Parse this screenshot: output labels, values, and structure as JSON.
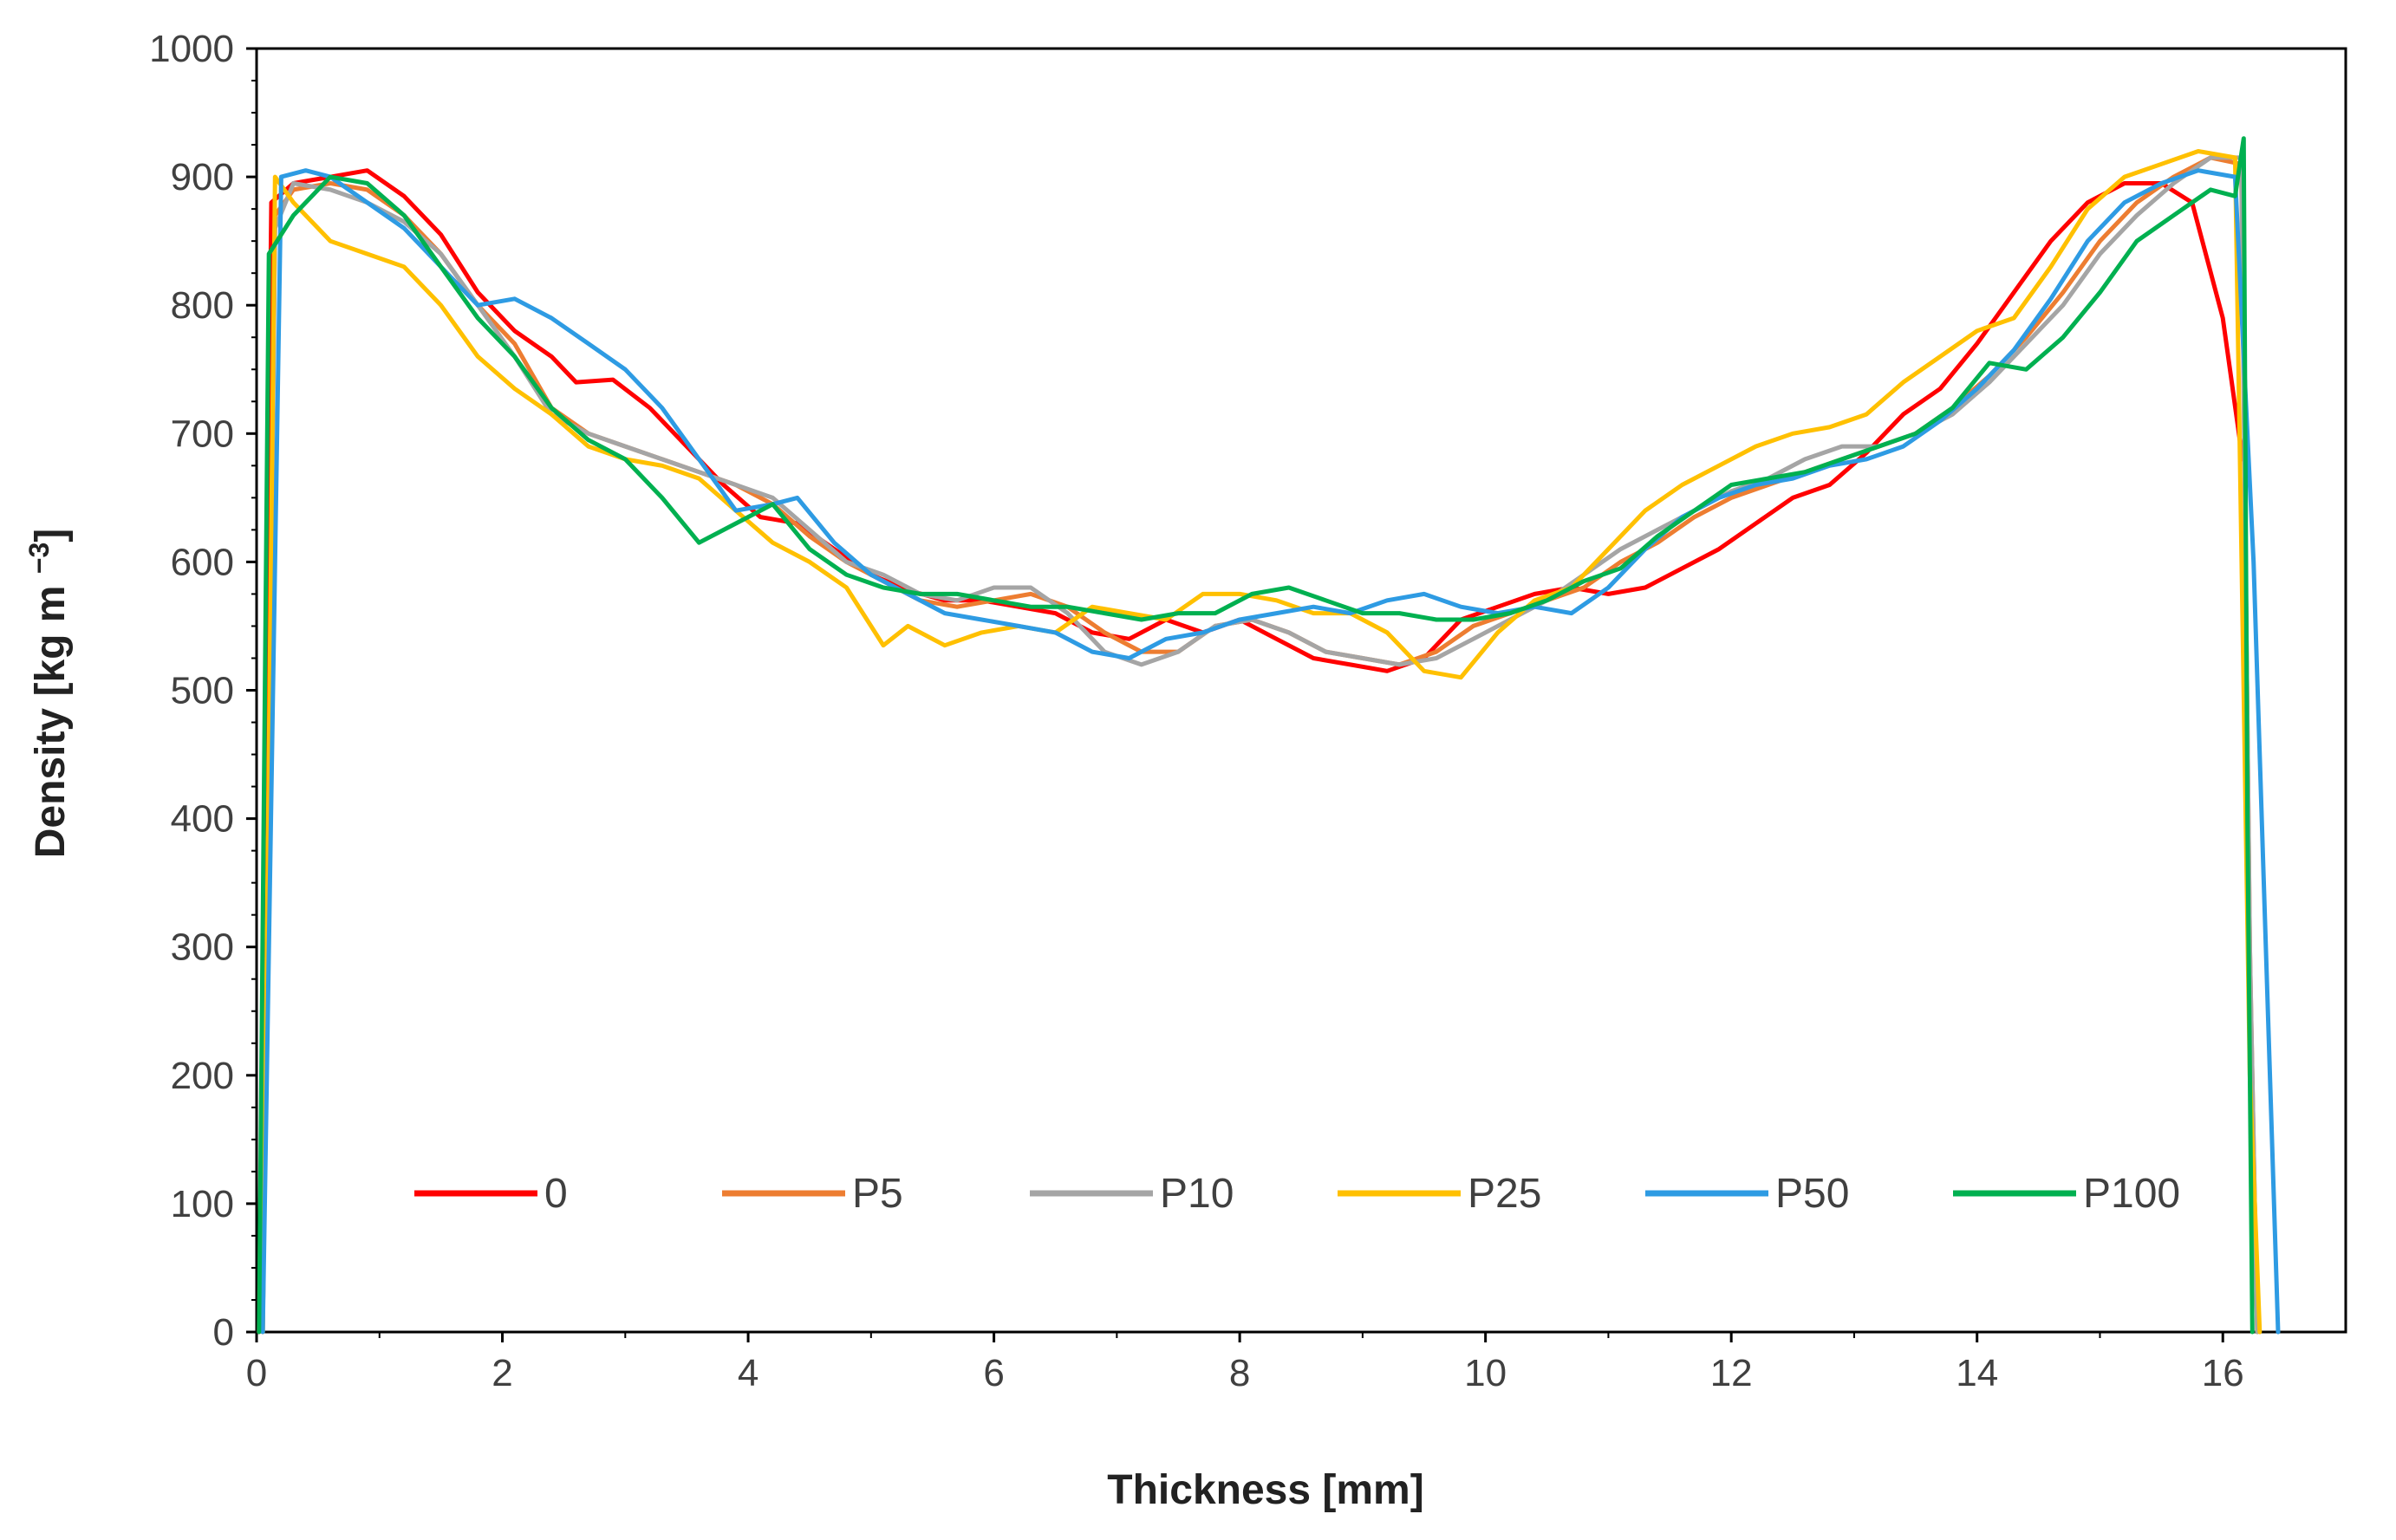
{
  "chart_data": {
    "type": "line",
    "title": "",
    "xlabel": "Thickness [mm]",
    "ylabel": "Density [kg m",
    "ylabel_sup": "−3",
    "ylabel_end": "]",
    "xlim": [
      0,
      17
    ],
    "ylim": [
      0,
      1000
    ],
    "xticks": [
      0,
      2,
      4,
      6,
      8,
      10,
      12,
      14,
      16
    ],
    "yticks": [
      0,
      100,
      200,
      300,
      400,
      500,
      600,
      700,
      800,
      900,
      1000
    ],
    "grid": false,
    "legend_position": "bottom-center",
    "series": [
      {
        "name": "0",
        "color": "#ff0000",
        "x": [
          0.02,
          0.12,
          0.3,
          0.6,
          0.9,
          1.2,
          1.5,
          1.8,
          2.1,
          2.4,
          2.6,
          2.9,
          3.2,
          3.5,
          3.8,
          4.1,
          4.4,
          4.7,
          5.0,
          5.3,
          5.6,
          5.9,
          6.2,
          6.5,
          6.8,
          7.1,
          7.4,
          7.7,
          8.0,
          8.3,
          8.6,
          8.9,
          9.2,
          9.5,
          9.8,
          10.1,
          10.4,
          10.7,
          11.0,
          11.3,
          11.6,
          11.9,
          12.2,
          12.5,
          12.8,
          13.1,
          13.4,
          13.7,
          14.0,
          14.3,
          14.6,
          14.9,
          15.2,
          15.5,
          15.75,
          16.0,
          16.16
        ],
        "y": [
          0,
          880,
          895,
          900,
          905,
          885,
          855,
          810,
          780,
          760,
          740,
          742,
          720,
          690,
          660,
          635,
          630,
          610,
          590,
          578,
          570,
          570,
          565,
          560,
          545,
          540,
          555,
          545,
          555,
          540,
          525,
          520,
          515,
          525,
          555,
          565,
          575,
          580,
          575,
          580,
          595,
          610,
          630,
          650,
          660,
          685,
          715,
          735,
          770,
          810,
          850,
          880,
          895,
          895,
          880,
          790,
          680
        ]
      },
      {
        "name": "P5",
        "color": "#ed7d31",
        "x": [
          0.05,
          0.15,
          0.3,
          0.6,
          0.9,
          1.2,
          1.5,
          1.8,
          2.1,
          2.4,
          2.7,
          3.0,
          3.3,
          3.6,
          3.9,
          4.2,
          4.5,
          4.8,
          5.1,
          5.4,
          5.7,
          6.0,
          6.3,
          6.6,
          6.9,
          7.2,
          7.5,
          7.8,
          8.1,
          8.4,
          8.7,
          9.0,
          9.3,
          9.6,
          9.9,
          10.2,
          10.5,
          10.8,
          11.1,
          11.4,
          11.7,
          12.0,
          12.3,
          12.6,
          12.9,
          13.2,
          13.5,
          13.8,
          14.1,
          14.4,
          14.7,
          15.0,
          15.3,
          15.6,
          15.9,
          16.15,
          16.22,
          16.28
        ],
        "y": [
          0,
          870,
          890,
          895,
          890,
          870,
          840,
          800,
          770,
          720,
          700,
          690,
          680,
          670,
          660,
          645,
          620,
          600,
          585,
          570,
          565,
          570,
          575,
          565,
          545,
          530,
          530,
          550,
          555,
          545,
          530,
          525,
          520,
          530,
          550,
          560,
          570,
          580,
          600,
          615,
          635,
          650,
          660,
          670,
          680,
          690,
          700,
          720,
          745,
          775,
          810,
          850,
          880,
          900,
          915,
          910,
          300,
          0
        ]
      },
      {
        "name": "P10",
        "color": "#a5a5a5",
        "x": [
          0.05,
          0.15,
          0.3,
          0.6,
          0.9,
          1.2,
          1.5,
          1.8,
          2.1,
          2.4,
          2.7,
          3.0,
          3.3,
          3.6,
          3.9,
          4.2,
          4.5,
          4.8,
          5.1,
          5.4,
          5.7,
          6.0,
          6.3,
          6.6,
          6.9,
          7.2,
          7.5,
          7.8,
          8.1,
          8.4,
          8.7,
          9.0,
          9.3,
          9.6,
          9.9,
          10.2,
          10.5,
          10.8,
          11.1,
          11.4,
          11.7,
          12.0,
          12.3,
          12.6,
          12.9,
          13.2,
          13.5,
          13.8,
          14.1,
          14.4,
          14.7,
          15.0,
          15.3,
          15.6,
          15.9,
          16.15,
          16.22,
          16.28
        ],
        "y": [
          0,
          860,
          895,
          890,
          880,
          865,
          840,
          800,
          760,
          715,
          700,
          690,
          680,
          670,
          660,
          650,
          625,
          600,
          590,
          575,
          570,
          580,
          580,
          560,
          530,
          520,
          530,
          550,
          555,
          545,
          530,
          525,
          520,
          525,
          540,
          555,
          570,
          590,
          610,
          625,
          640,
          655,
          665,
          680,
          690,
          690,
          700,
          715,
          740,
          770,
          800,
          840,
          870,
          895,
          915,
          915,
          300,
          0
        ]
      },
      {
        "name": "P25",
        "color": "#ffc000",
        "x": [
          0.05,
          0.15,
          0.3,
          0.6,
          0.9,
          1.2,
          1.5,
          1.8,
          2.1,
          2.4,
          2.7,
          3.0,
          3.3,
          3.6,
          3.9,
          4.2,
          4.5,
          4.8,
          5.1,
          5.3,
          5.6,
          5.9,
          6.2,
          6.5,
          6.8,
          7.1,
          7.4,
          7.7,
          8.0,
          8.3,
          8.6,
          8.9,
          9.2,
          9.5,
          9.8,
          10.1,
          10.4,
          10.7,
          11.0,
          11.3,
          11.6,
          11.9,
          12.2,
          12.5,
          12.8,
          13.1,
          13.4,
          13.7,
          14.0,
          14.3,
          14.6,
          14.9,
          15.2,
          15.5,
          15.8,
          16.1,
          16.22,
          16.3
        ],
        "y": [
          0,
          900,
          880,
          850,
          840,
          830,
          800,
          760,
          735,
          715,
          690,
          680,
          675,
          665,
          640,
          615,
          600,
          580,
          535,
          550,
          535,
          545,
          550,
          545,
          565,
          560,
          555,
          575,
          575,
          570,
          560,
          560,
          545,
          515,
          510,
          545,
          570,
          580,
          610,
          640,
          660,
          675,
          690,
          700,
          705,
          715,
          740,
          760,
          780,
          790,
          830,
          875,
          900,
          910,
          920,
          915,
          200,
          0
        ]
      },
      {
        "name": "P50",
        "color": "#2e9be3",
        "x": [
          0.05,
          0.2,
          0.4,
          0.6,
          0.9,
          1.2,
          1.5,
          1.8,
          2.1,
          2.4,
          2.7,
          3.0,
          3.3,
          3.6,
          3.9,
          4.2,
          4.4,
          4.7,
          5.0,
          5.3,
          5.6,
          5.9,
          6.2,
          6.5,
          6.8,
          7.1,
          7.4,
          7.7,
          8.0,
          8.3,
          8.6,
          8.9,
          9.2,
          9.5,
          9.8,
          10.1,
          10.4,
          10.7,
          11.0,
          11.3,
          11.6,
          11.9,
          12.2,
          12.5,
          12.8,
          13.1,
          13.4,
          13.7,
          14.0,
          14.3,
          14.6,
          14.9,
          15.2,
          15.5,
          15.8,
          16.1,
          16.25,
          16.45
        ],
        "y": [
          0,
          900,
          905,
          900,
          880,
          860,
          830,
          800,
          805,
          790,
          770,
          750,
          720,
          680,
          640,
          645,
          650,
          615,
          590,
          575,
          560,
          555,
          550,
          545,
          530,
          525,
          540,
          545,
          555,
          560,
          565,
          560,
          570,
          575,
          565,
          560,
          565,
          560,
          580,
          610,
          635,
          650,
          660,
          665,
          675,
          680,
          690,
          710,
          735,
          765,
          805,
          850,
          880,
          895,
          905,
          900,
          600,
          0
        ]
      },
      {
        "name": "P100",
        "color": "#00b050",
        "x": [
          0.02,
          0.1,
          0.3,
          0.6,
          0.9,
          1.2,
          1.5,
          1.8,
          2.1,
          2.4,
          2.7,
          3.0,
          3.3,
          3.6,
          3.9,
          4.2,
          4.5,
          4.8,
          5.1,
          5.4,
          5.7,
          6.0,
          6.3,
          6.6,
          6.9,
          7.2,
          7.5,
          7.8,
          8.1,
          8.4,
          8.7,
          9.0,
          9.3,
          9.6,
          9.9,
          10.2,
          10.5,
          10.8,
          11.1,
          11.4,
          11.7,
          12.0,
          12.3,
          12.6,
          12.9,
          13.2,
          13.5,
          13.8,
          14.1,
          14.4,
          14.7,
          15.0,
          15.3,
          15.6,
          15.9,
          16.1,
          16.17,
          16.2,
          16.24
        ],
        "y": [
          0,
          840,
          870,
          900,
          895,
          870,
          830,
          790,
          760,
          720,
          695,
          680,
          650,
          615,
          630,
          645,
          610,
          590,
          580,
          575,
          575,
          570,
          565,
          565,
          560,
          555,
          560,
          560,
          575,
          580,
          570,
          560,
          560,
          555,
          555,
          560,
          570,
          585,
          595,
          620,
          640,
          660,
          665,
          670,
          680,
          690,
          700,
          720,
          755,
          750,
          775,
          810,
          850,
          870,
          890,
          885,
          930,
          400,
          0
        ]
      }
    ]
  }
}
